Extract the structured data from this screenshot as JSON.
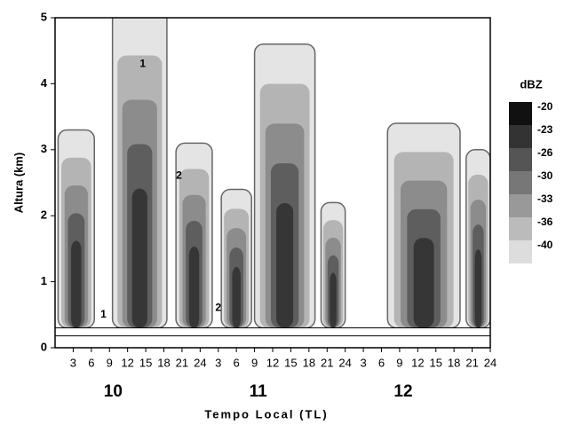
{
  "chart_data": {
    "type": "contour",
    "y_label": "Altura (km)",
    "x_label": "Tempo Local (TL)",
    "ylim": [
      0,
      5
    ],
    "yticks": [
      0,
      1,
      2,
      3,
      4,
      5
    ],
    "xlim": [
      0,
      72
    ],
    "xticks": [
      3,
      6,
      9,
      12,
      15,
      18,
      21,
      24,
      {
        "value": 27,
        "label": "3"
      },
      {
        "value": 30,
        "label": "6"
      },
      {
        "value": 33,
        "label": "9"
      },
      {
        "value": 36,
        "label": "12"
      },
      {
        "value": 39,
        "label": "15"
      },
      {
        "value": 42,
        "label": "18"
      },
      {
        "value": 45,
        "label": "21"
      },
      {
        "value": 48,
        "label": "24"
      },
      {
        "value": 51,
        "label": "3"
      },
      {
        "value": 54,
        "label": "6"
      },
      {
        "value": 57,
        "label": "9"
      },
      {
        "value": 60,
        "label": "12"
      },
      {
        "value": 63,
        "label": "15"
      },
      {
        "value": 66,
        "label": "18"
      },
      {
        "value": 69,
        "label": "21"
      },
      {
        "value": 72,
        "label": "24"
      }
    ],
    "days": [
      "10",
      "11",
      "12"
    ],
    "annotations": [
      "1",
      "1",
      "2",
      "2"
    ],
    "colorbar": {
      "title": "dBZ",
      "levels": [
        -20,
        -23,
        -26,
        -30,
        -33,
        -36,
        -40
      ],
      "colors": [
        "#111111",
        "#333333",
        "#555555",
        "#777777",
        "#999999",
        "#bbbbbb",
        "#dddddd"
      ]
    }
  }
}
